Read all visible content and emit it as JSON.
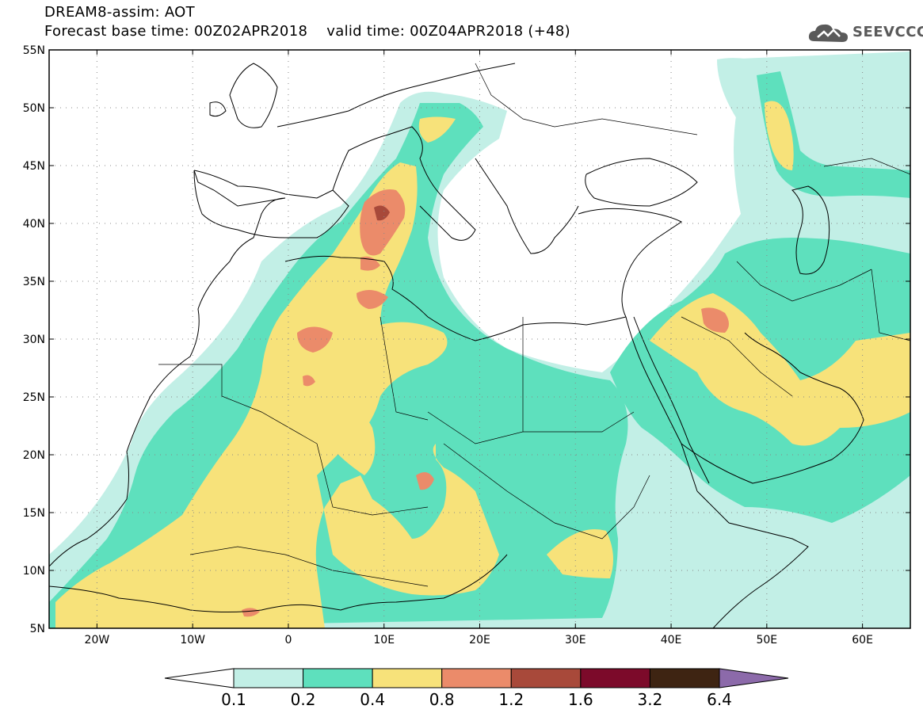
{
  "header": {
    "title": "DREAM8-assim: AOT",
    "subtitle": "Forecast base time: 00Z02APR2018    valid time: 00Z04APR2018 (+48)",
    "logo_text": "SEEVCCC"
  },
  "map": {
    "lon_range": [
      -25,
      65
    ],
    "lat_range": [
      5,
      55
    ],
    "lat_labels": [
      "5N",
      "10N",
      "15N",
      "20N",
      "25N",
      "30N",
      "35N",
      "40N",
      "45N",
      "50N",
      "55N"
    ],
    "lon_labels": [
      "20W",
      "10W",
      "0",
      "10E",
      "20E",
      "30E",
      "40E",
      "50E",
      "60E"
    ],
    "grid": "dotted"
  },
  "colorbar": {
    "labels": [
      "0.1",
      "0.2",
      "0.4",
      "0.8",
      "1.2",
      "1.6",
      "3.2",
      "6.4"
    ],
    "colors": [
      "#ffffff",
      "#c2efe6",
      "#5ee0bd",
      "#f7e27a",
      "#eb8b6a",
      "#a8493a",
      "#7c0a2a",
      "#3e2412",
      "#8c6aaa"
    ]
  },
  "aot_colors": {
    "c01": "#c2efe6",
    "c02": "#5ee0bd",
    "c04": "#f7e27a",
    "c08": "#eb8b6a",
    "c12": "#a8493a"
  }
}
